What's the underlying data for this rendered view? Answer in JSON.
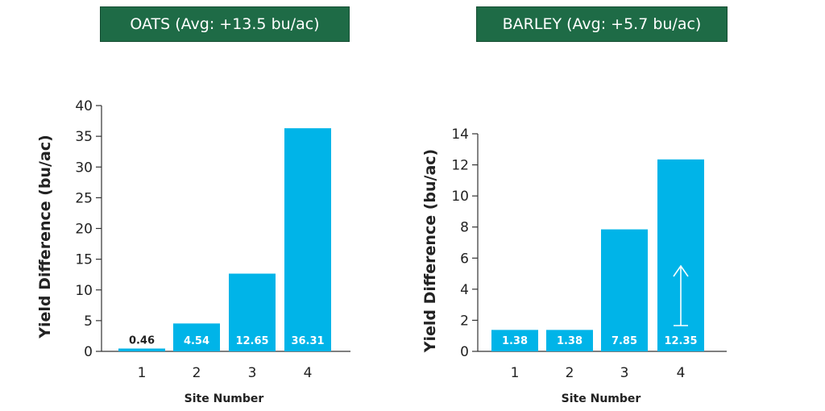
{
  "colors": {
    "bar": "#00b4e8",
    "title_bg": "#1e6b46",
    "label_inside": "#ffffff",
    "label_outside": "#222222"
  },
  "chart_data": [
    {
      "type": "bar",
      "title": "OATS (Avg: +13.5 bu/ac)",
      "categories": [
        "1",
        "2",
        "3",
        "4"
      ],
      "values": [
        0.46,
        4.54,
        12.65,
        36.31
      ],
      "data_labels": [
        "0.46",
        "4.54",
        "12.65",
        "36.31"
      ],
      "xlabel": "Site Number",
      "ylabel": "Yield Difference (bu/ac)",
      "ylim": [
        0,
        40
      ],
      "yticks": [
        "0",
        "5",
        "10",
        "15",
        "20",
        "25",
        "30",
        "35",
        "40"
      ],
      "grid": false
    },
    {
      "type": "bar",
      "title": "BARLEY (Avg: +5.7 bu/ac)",
      "categories": [
        "1",
        "2",
        "3",
        "4"
      ],
      "values": [
        1.38,
        1.38,
        7.85,
        12.35
      ],
      "data_labels": [
        "1.38",
        "1.38",
        "7.85",
        "12.35"
      ],
      "xlabel": "Site Number",
      "ylabel": "Yield Difference (bu/ac)",
      "ylim": [
        0,
        14
      ],
      "yticks": [
        "0",
        "2",
        "4",
        "6",
        "8",
        "10",
        "12",
        "14"
      ],
      "grid": false,
      "annotation": "up-arrow-icon"
    }
  ]
}
